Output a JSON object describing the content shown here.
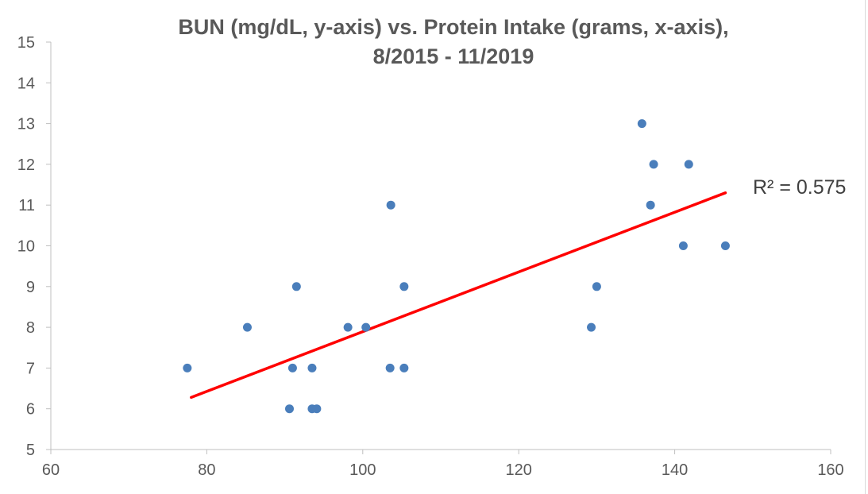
{
  "chart_data": {
    "type": "scatter",
    "title_lines": [
      "BUN (mg/dL, y-axis) vs. Protein Intake (grams, x-axis),",
      "8/2015 - 11/2019"
    ],
    "xlabel": "",
    "ylabel": "",
    "xlim": [
      60,
      160
    ],
    "ylim": [
      5,
      15
    ],
    "x_ticks": [
      "60",
      "80",
      "100",
      "120",
      "140",
      "160"
    ],
    "y_ticks": [
      "5",
      "6",
      "7",
      "8",
      "9",
      "10",
      "11",
      "12",
      "13",
      "14",
      "15"
    ],
    "grid": false,
    "legend": "none",
    "point_color": "#4a7ebb",
    "points": [
      {
        "x": 77.5,
        "y": 7
      },
      {
        "x": 85.2,
        "y": 8
      },
      {
        "x": 90.6,
        "y": 6
      },
      {
        "x": 91.0,
        "y": 7
      },
      {
        "x": 91.5,
        "y": 9
      },
      {
        "x": 93.5,
        "y": 6
      },
      {
        "x": 93.5,
        "y": 7
      },
      {
        "x": 94.1,
        "y": 6
      },
      {
        "x": 98.1,
        "y": 8
      },
      {
        "x": 100.4,
        "y": 8
      },
      {
        "x": 103.5,
        "y": 7
      },
      {
        "x": 103.6,
        "y": 11
      },
      {
        "x": 105.3,
        "y": 7
      },
      {
        "x": 105.3,
        "y": 9
      },
      {
        "x": 129.3,
        "y": 8
      },
      {
        "x": 130.0,
        "y": 9
      },
      {
        "x": 135.8,
        "y": 13
      },
      {
        "x": 136.9,
        "y": 11
      },
      {
        "x": 137.3,
        "y": 12
      },
      {
        "x": 141.1,
        "y": 10
      },
      {
        "x": 141.8,
        "y": 12
      },
      {
        "x": 146.5,
        "y": 10
      }
    ],
    "trendline": {
      "type": "linear",
      "color": "#ff0000",
      "x_start": 78.0,
      "y_start": 6.28,
      "x_end": 146.5,
      "y_end": 11.3,
      "label": "R² = 0.575"
    }
  }
}
